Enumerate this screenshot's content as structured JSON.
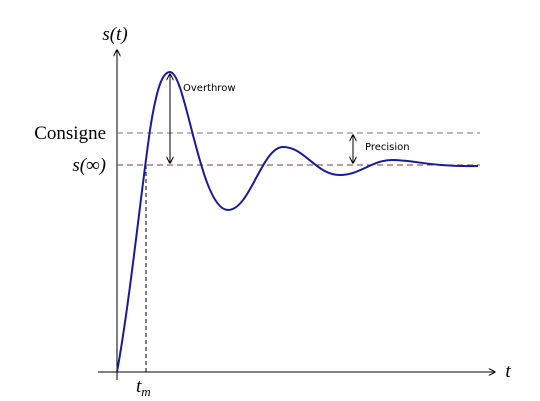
{
  "axes": {
    "y_label": "s(t)",
    "x_label": "t"
  },
  "levels": {
    "setpoint": "Consigne",
    "final": "s(∞)"
  },
  "time_marker": {
    "base": "t",
    "subscript": "m"
  },
  "annotations": {
    "overshoot": "Overthrow",
    "precision": "Precision"
  }
}
